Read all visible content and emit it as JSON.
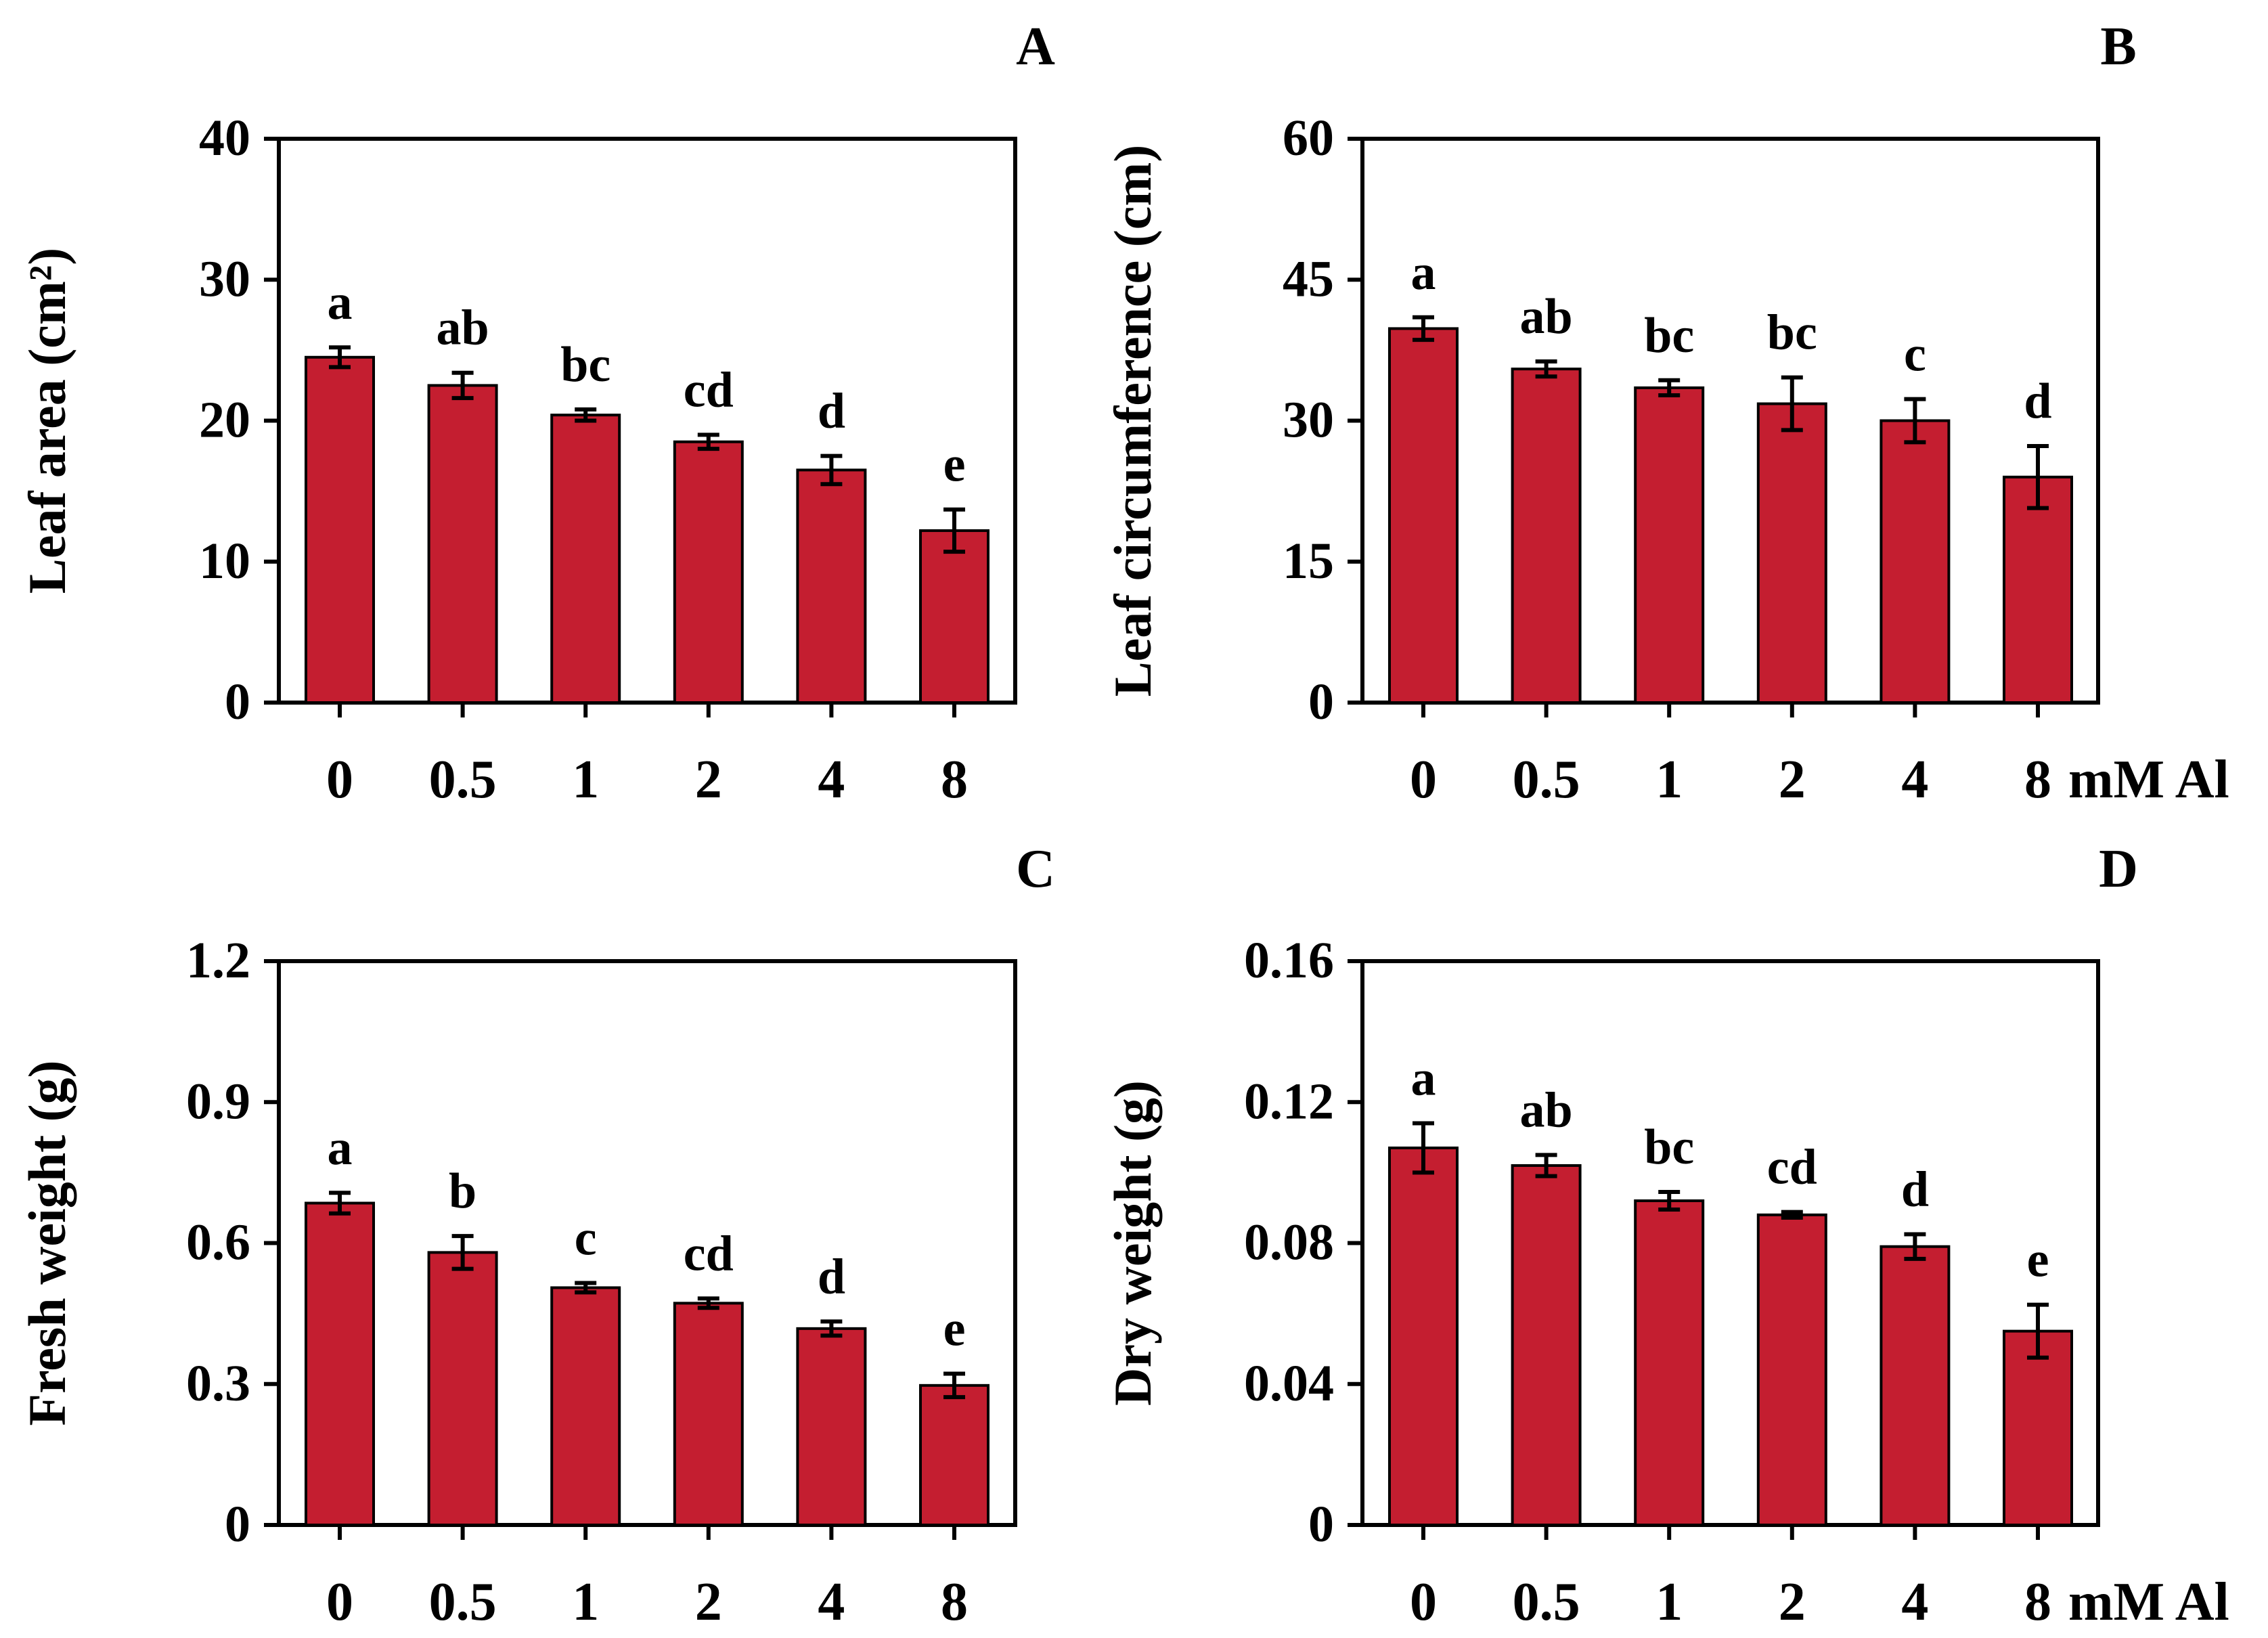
{
  "figure": {
    "bar_color": "#c41e30",
    "axis_color": "#000000"
  },
  "chart_data": [
    {
      "type": "bar",
      "panel_label": "A",
      "title": "",
      "xlabel": "",
      "ylabel": "Leaf area (cm²)",
      "categories": [
        "0",
        "0.5",
        "1",
        "2",
        "4",
        "8"
      ],
      "values": [
        24.5,
        22.5,
        20.4,
        18.5,
        16.5,
        12.2
      ],
      "errors": [
        0.7,
        0.9,
        0.4,
        0.5,
        1.0,
        1.5
      ],
      "significance": [
        "a",
        "ab",
        "bc",
        "cd",
        "d",
        "e"
      ],
      "ylim": [
        0,
        40
      ],
      "yticks": [
        "0",
        "10",
        "20",
        "30",
        "40"
      ],
      "unit_label": "",
      "grid": false
    },
    {
      "type": "bar",
      "panel_label": "B",
      "title": "",
      "xlabel": "",
      "ylabel": "Leaf circumference (cm)",
      "categories": [
        "0",
        "0.5",
        "1",
        "2",
        "4",
        "8"
      ],
      "values": [
        39.8,
        35.5,
        33.5,
        31.8,
        30.0,
        24.0
      ],
      "errors": [
        1.2,
        0.8,
        0.8,
        2.8,
        2.3,
        3.3
      ],
      "significance": [
        "a",
        "ab",
        "bc",
        "bc",
        "c",
        "d"
      ],
      "ylim": [
        0,
        60
      ],
      "yticks": [
        "0",
        "15",
        "30",
        "45",
        "60"
      ],
      "unit_label": "mM Al",
      "grid": false
    },
    {
      "type": "bar",
      "panel_label": "C",
      "title": "",
      "xlabel": "",
      "ylabel": "Fresh weight (g)",
      "categories": [
        "0",
        "0.5",
        "1",
        "2",
        "4",
        "8"
      ],
      "values": [
        0.685,
        0.58,
        0.505,
        0.472,
        0.418,
        0.297
      ],
      "errors": [
        0.022,
        0.035,
        0.01,
        0.01,
        0.015,
        0.025
      ],
      "significance": [
        "a",
        "b",
        "c",
        "cd",
        "d",
        "e"
      ],
      "ylim": [
        0,
        1.2
      ],
      "yticks": [
        "0",
        "0.3",
        "0.6",
        "0.9",
        "1.2"
      ],
      "unit_label": "",
      "grid": false
    },
    {
      "type": "bar",
      "panel_label": "D",
      "title": "",
      "xlabel": "",
      "ylabel": "Dry weight (g)",
      "categories": [
        "0",
        "0.5",
        "1",
        "2",
        "4",
        "8"
      ],
      "values": [
        0.107,
        0.102,
        0.092,
        0.088,
        0.079,
        0.055
      ],
      "errors": [
        0.007,
        0.003,
        0.0025,
        0.0008,
        0.0035,
        0.0075
      ],
      "significance": [
        "a",
        "ab",
        "bc",
        "cd",
        "d",
        "e"
      ],
      "ylim": [
        0,
        0.16
      ],
      "yticks": [
        "0",
        "0.04",
        "0.08",
        "0.12",
        "0.16"
      ],
      "unit_label": "mM Al",
      "grid": false
    }
  ]
}
